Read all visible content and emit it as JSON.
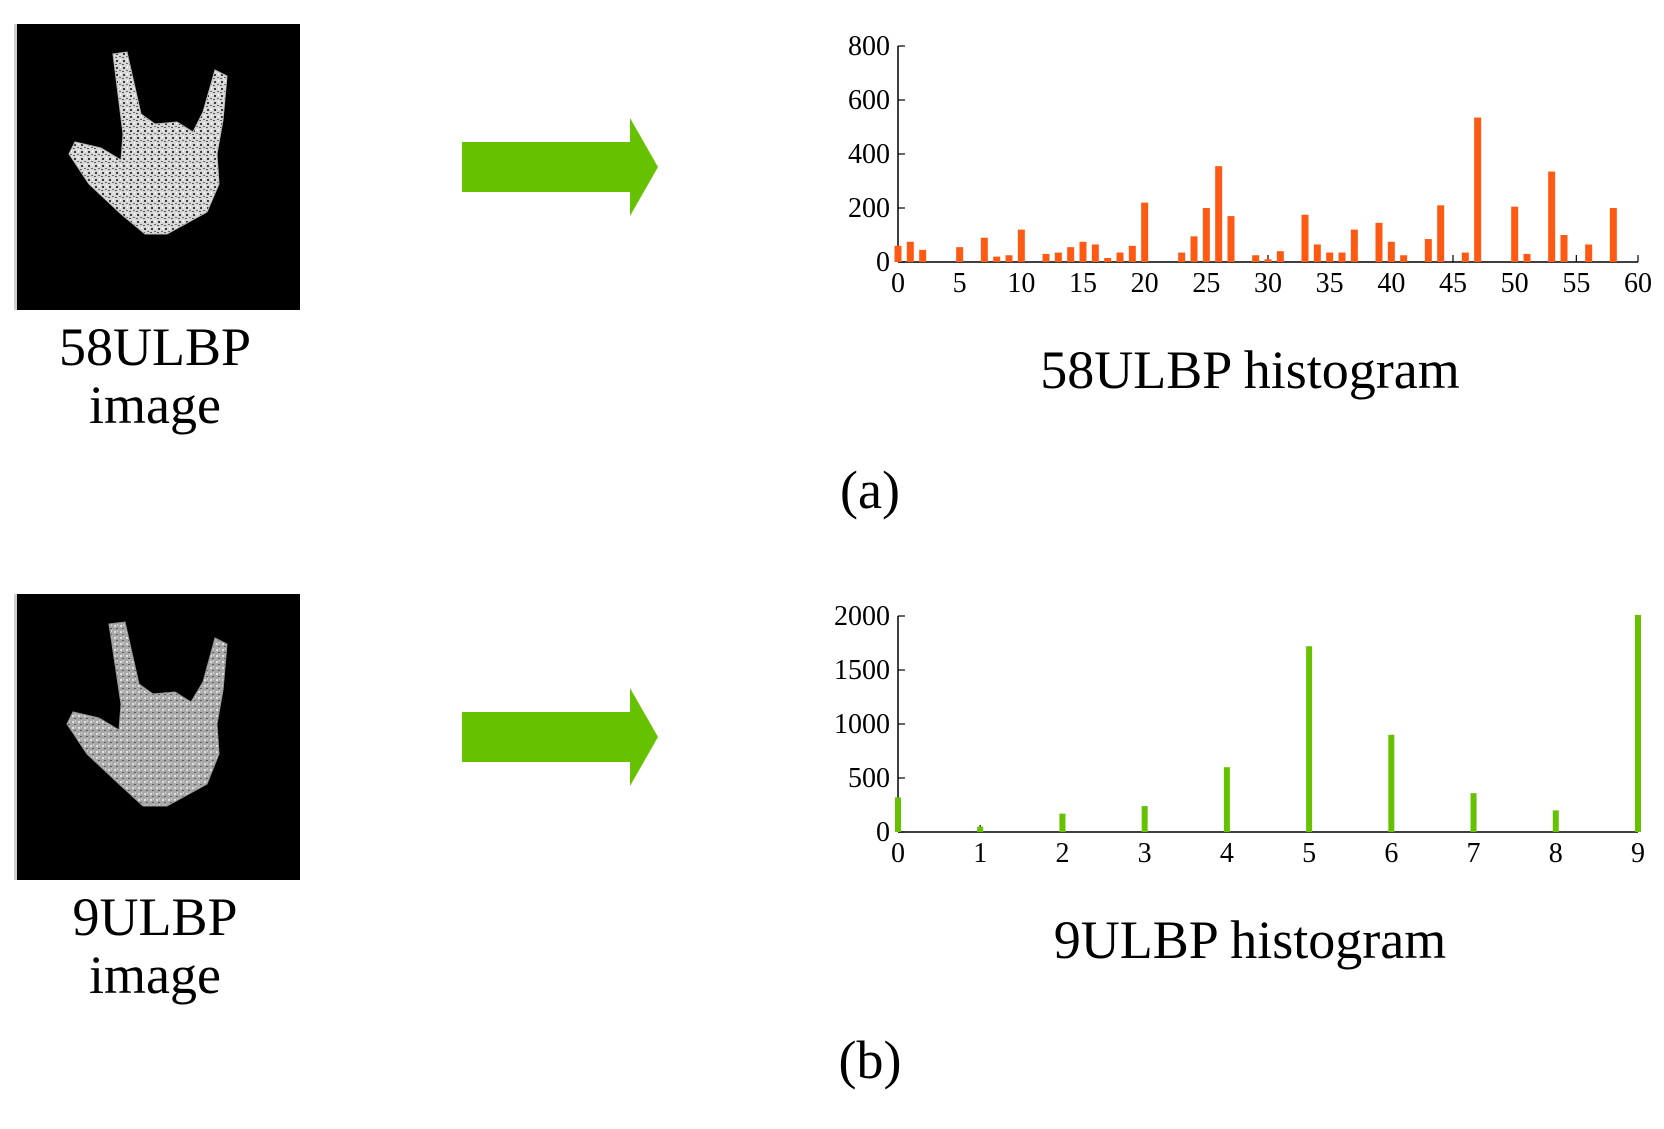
{
  "colors": {
    "arrow": "#66c200",
    "bar_a": "#ff5a14",
    "bar_b": "#66c200",
    "axis": "#000000"
  },
  "panels": [
    {
      "image_caption_line1": "58ULBP",
      "image_caption_line2": "image",
      "chart_title": "58ULBP histogram",
      "label": "(a)"
    },
    {
      "image_caption_line1": "9ULBP",
      "image_caption_line2": "image",
      "chart_title": "9ULBP histogram",
      "label": "(b)"
    }
  ],
  "chart_data": [
    {
      "type": "bar",
      "title": "58ULBP histogram",
      "xlim": [
        0,
        60
      ],
      "ylim": [
        0,
        800
      ],
      "xticks": [
        0,
        5,
        10,
        15,
        20,
        25,
        30,
        35,
        40,
        45,
        50,
        55,
        60
      ],
      "yticks": [
        0,
        200,
        400,
        600,
        800
      ],
      "x": [
        0,
        1,
        2,
        3,
        4,
        5,
        6,
        7,
        8,
        9,
        10,
        11,
        12,
        13,
        14,
        15,
        16,
        17,
        18,
        19,
        20,
        21,
        22,
        23,
        24,
        25,
        26,
        27,
        28,
        29,
        30,
        31,
        32,
        33,
        34,
        35,
        36,
        37,
        38,
        39,
        40,
        41,
        42,
        43,
        44,
        45,
        46,
        47,
        48,
        49,
        50,
        51,
        52,
        53,
        54,
        55,
        56,
        57,
        58
      ],
      "values": [
        60,
        75,
        45,
        0,
        0,
        55,
        0,
        90,
        20,
        25,
        120,
        0,
        30,
        35,
        55,
        75,
        65,
        15,
        35,
        60,
        220,
        0,
        0,
        35,
        95,
        200,
        355,
        170,
        0,
        25,
        10,
        40,
        0,
        175,
        65,
        35,
        35,
        120,
        0,
        145,
        75,
        25,
        0,
        85,
        210,
        0,
        35,
        535,
        0,
        0,
        205,
        30,
        0,
        335,
        100,
        0,
        65,
        0,
        200
      ],
      "color": "#ff5a14"
    },
    {
      "type": "bar",
      "title": "9ULBP histogram",
      "xlim": [
        0,
        9
      ],
      "ylim": [
        0,
        2000
      ],
      "xticks": [
        0,
        1,
        2,
        3,
        4,
        5,
        6,
        7,
        8,
        9
      ],
      "yticks": [
        0,
        500,
        1000,
        1500,
        2000
      ],
      "x": [
        0,
        1,
        2,
        3,
        4,
        5,
        6,
        7,
        8,
        9
      ],
      "values": [
        320,
        50,
        170,
        240,
        600,
        1720,
        900,
        360,
        200,
        2010
      ],
      "color": "#66c200"
    }
  ]
}
